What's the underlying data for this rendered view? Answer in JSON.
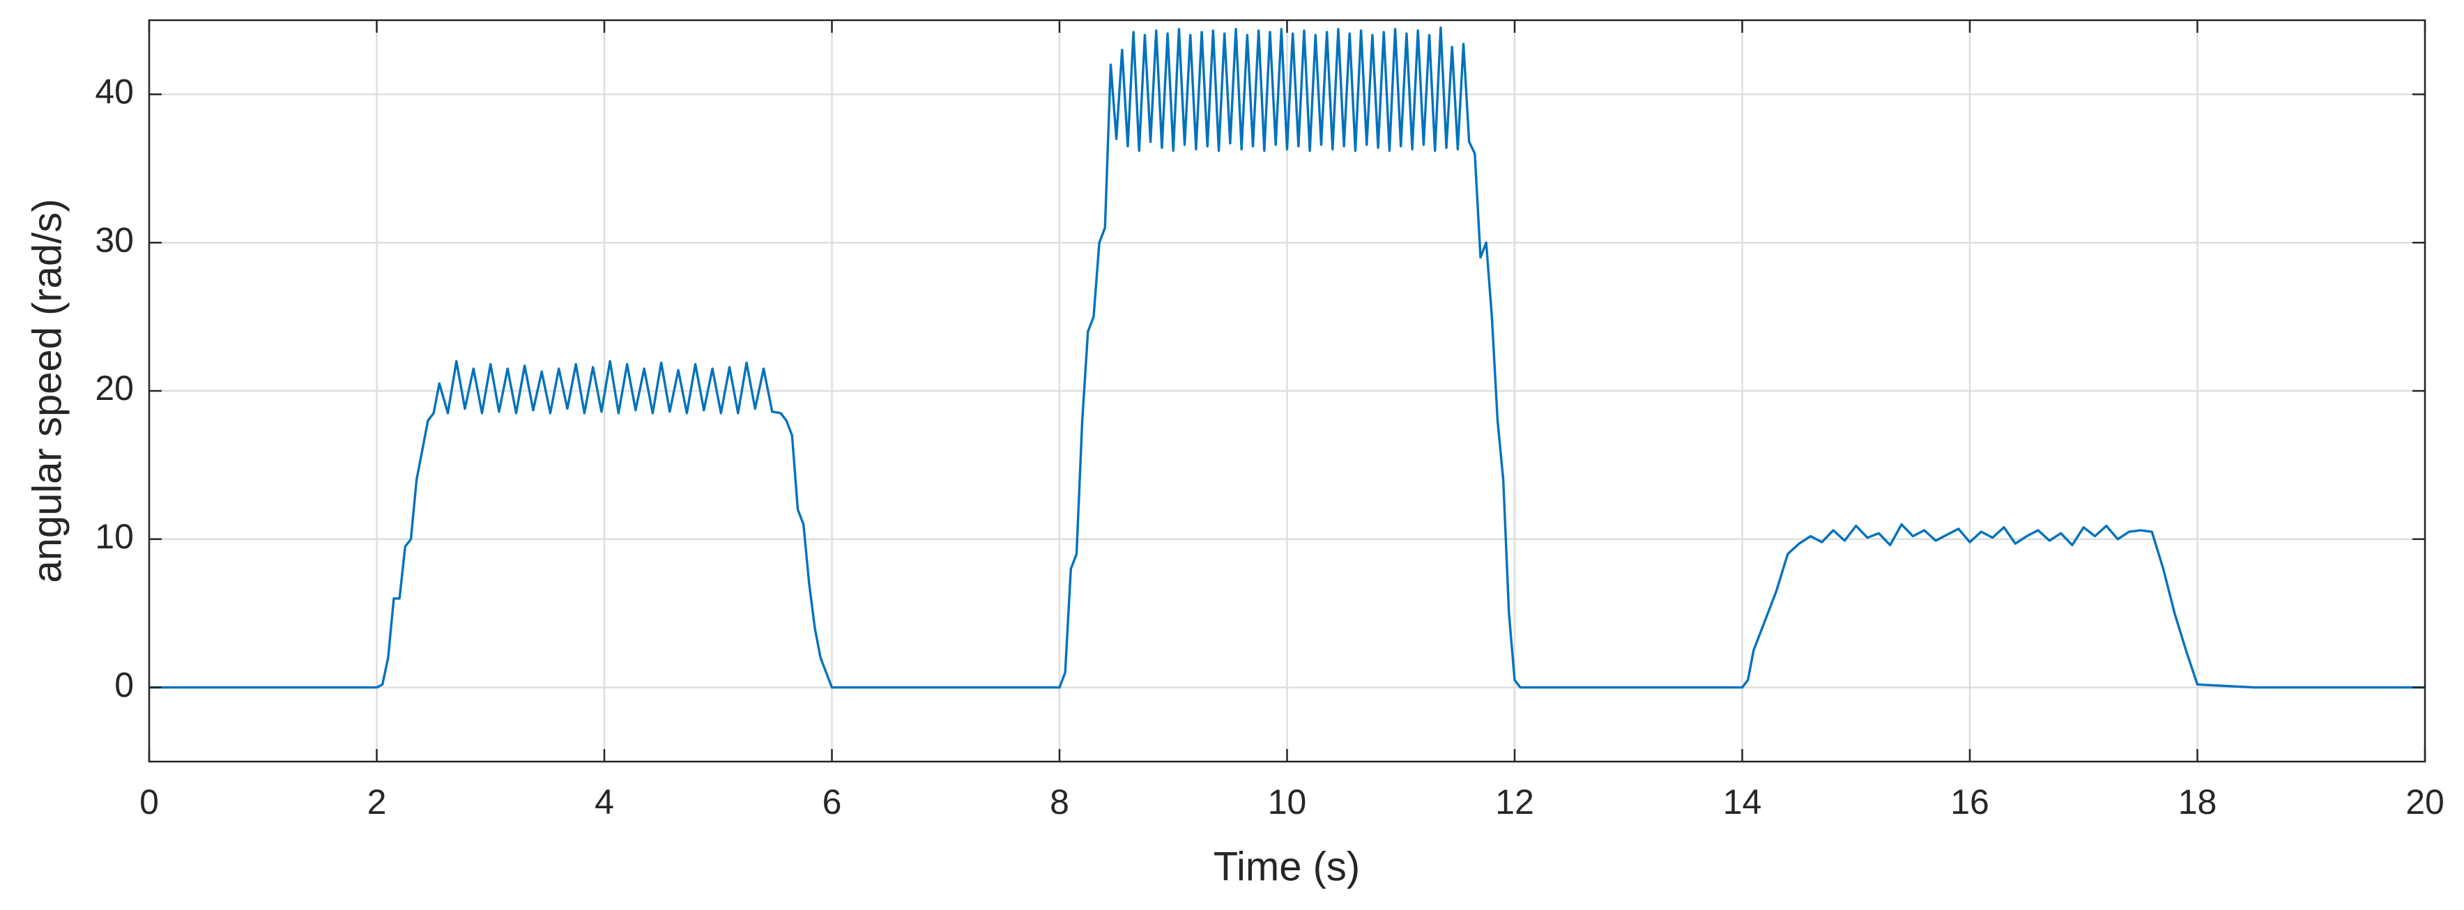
{
  "chart_data": {
    "type": "line",
    "x_label": "Time (s)",
    "y_label": "angular speed (rad/s)",
    "xlim": [
      0,
      20
    ],
    "xticks": [
      0,
      2,
      4,
      6,
      8,
      10,
      12,
      14,
      16,
      18,
      20
    ],
    "ylim": [
      -5,
      45
    ],
    "yticks": [
      0,
      10,
      20,
      30,
      40
    ],
    "grid": true,
    "series": [
      {
        "name": "angular speed",
        "color": "#0072BD",
        "x": [
          0,
          0.5,
          1,
          1.5,
          2,
          2.05,
          2.1,
          2.15,
          2.2,
          2.25,
          2.3,
          2.35,
          2.4,
          2.45,
          2.5,
          2.55,
          2.625,
          2.7,
          2.775,
          2.85,
          2.925,
          3.0,
          3.075,
          3.15,
          3.225,
          3.3,
          3.375,
          3.45,
          3.525,
          3.6,
          3.675,
          3.75,
          3.825,
          3.9,
          3.975,
          4.05,
          4.125,
          4.2,
          4.275,
          4.35,
          4.425,
          4.5,
          4.575,
          4.65,
          4.725,
          4.8,
          4.875,
          4.95,
          5.025,
          5.1,
          5.175,
          5.25,
          5.325,
          5.4,
          5.475,
          5.55,
          5.6,
          5.65,
          5.7,
          5.75,
          5.8,
          5.85,
          5.9,
          5.95,
          6,
          6.5,
          7,
          7.5,
          8,
          8.05,
          8.1,
          8.15,
          8.2,
          8.25,
          8.3,
          8.35,
          8.4,
          8.45,
          8.5,
          8.55,
          8.6,
          8.65,
          8.7,
          8.75,
          8.8,
          8.85,
          8.9,
          8.95,
          9,
          9.05,
          9.1,
          9.15,
          9.2,
          9.25,
          9.3,
          9.35,
          9.4,
          9.45,
          9.5,
          9.55,
          9.6,
          9.65,
          9.7,
          9.75,
          9.8,
          9.85,
          9.9,
          9.95,
          10,
          10.05,
          10.1,
          10.15,
          10.2,
          10.25,
          10.3,
          10.35,
          10.4,
          10.45,
          10.5,
          10.55,
          10.6,
          10.65,
          10.7,
          10.75,
          10.8,
          10.85,
          10.9,
          10.95,
          11,
          11.05,
          11.1,
          11.15,
          11.2,
          11.25,
          11.3,
          11.35,
          11.4,
          11.45,
          11.5,
          11.55,
          11.6,
          11.65,
          11.7,
          11.75,
          11.8,
          11.85,
          11.9,
          11.95,
          12,
          12.05,
          12.5,
          13,
          13.5,
          14,
          14.05,
          14.1,
          14.2,
          14.3,
          14.4,
          14.5,
          14.6,
          14.7,
          14.8,
          14.9,
          15,
          15.1,
          15.2,
          15.3,
          15.4,
          15.5,
          15.6,
          15.7,
          15.8,
          15.9,
          16,
          16.1,
          16.2,
          16.3,
          16.4,
          16.5,
          16.6,
          16.7,
          16.8,
          16.9,
          17,
          17.1,
          17.2,
          17.3,
          17.4,
          17.5,
          17.6,
          17.7,
          17.8,
          17.9,
          18,
          18.5,
          19,
          19.5,
          20
        ],
        "values": [
          0,
          0,
          0,
          0,
          0,
          0.2,
          2,
          6,
          6,
          9.5,
          10,
          14,
          16,
          18,
          18.5,
          20.5,
          18.5,
          22,
          18.8,
          21.5,
          18.5,
          21.8,
          18.6,
          21.5,
          18.5,
          21.7,
          18.7,
          21.3,
          18.5,
          21.5,
          18.8,
          21.8,
          18.5,
          21.6,
          18.6,
          22,
          18.5,
          21.8,
          18.7,
          21.5,
          18.5,
          21.9,
          18.6,
          21.4,
          18.5,
          21.8,
          18.7,
          21.5,
          18.5,
          21.6,
          18.5,
          21.9,
          18.8,
          21.5,
          18.6,
          18.5,
          18,
          17,
          12,
          11,
          7,
          4,
          2,
          1,
          0,
          0,
          0,
          0,
          0,
          1,
          8,
          9,
          18,
          24,
          25,
          30,
          31,
          42,
          37,
          43,
          36.5,
          44.2,
          36.2,
          44,
          36.8,
          44.3,
          36.4,
          44.1,
          36.2,
          44.4,
          36.6,
          44,
          36.3,
          44.2,
          36.5,
          44.3,
          36.2,
          44.1,
          36.7,
          44.4,
          36.3,
          44,
          36.5,
          44.3,
          36.2,
          44.2,
          36.6,
          44.4,
          36.3,
          44.1,
          36.5,
          44.3,
          36.2,
          44,
          36.6,
          44.2,
          36.3,
          44.4,
          36.5,
          44.1,
          36.2,
          44.3,
          36.6,
          44,
          36.4,
          44.2,
          36.2,
          44.4,
          36.5,
          44.1,
          36.3,
          44.3,
          36.6,
          44,
          36.2,
          44.5,
          36.4,
          43.2,
          36.3,
          43.4,
          36.8,
          36,
          29,
          30,
          25,
          18,
          14,
          5,
          0.5,
          0,
          0,
          0,
          0,
          0,
          0.5,
          2.5,
          4.5,
          6.5,
          9,
          9.7,
          10.2,
          9.8,
          10.6,
          9.9,
          10.9,
          10.1,
          10.4,
          9.6,
          11.0,
          10.2,
          10.6,
          9.9,
          10.3,
          10.7,
          9.8,
          10.5,
          10.1,
          10.8,
          9.7,
          10.2,
          10.6,
          9.9,
          10.4,
          9.6,
          10.8,
          10.2,
          10.9,
          10.0,
          10.5,
          10.6,
          10.5,
          8,
          5,
          2.5,
          0.2,
          0,
          0,
          0,
          0
        ]
      }
    ]
  }
}
